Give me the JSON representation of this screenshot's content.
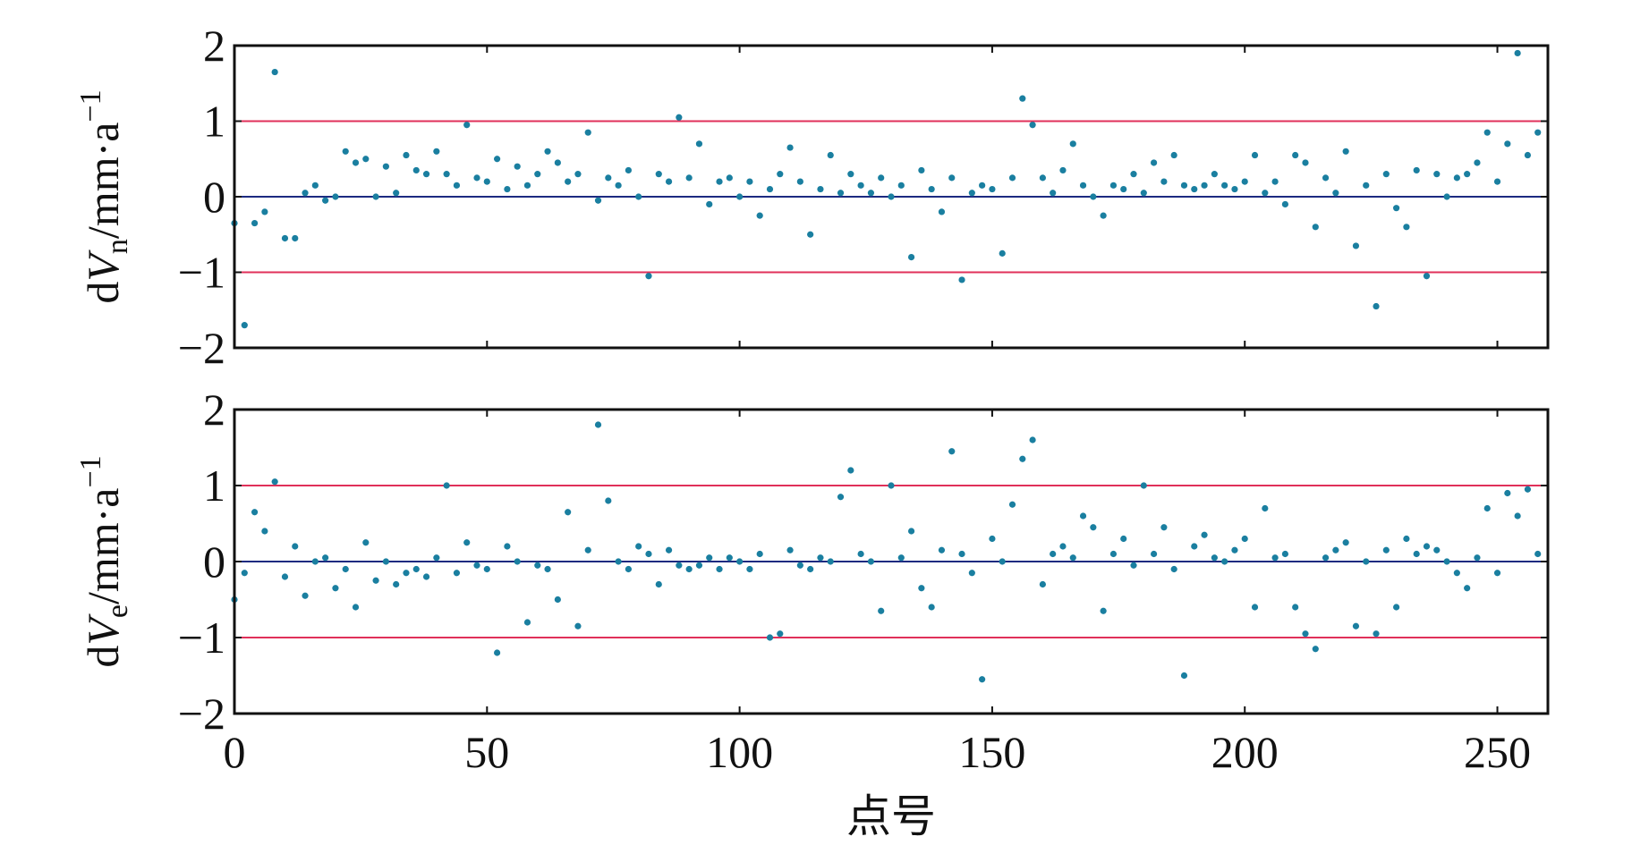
{
  "chart_data": [
    {
      "type": "scatter",
      "ylabel": [
        "d",
        "V",
        "n",
        "/mm·a",
        "−1"
      ],
      "color": "#1a7fa0",
      "x": [
        0,
        2,
        4,
        6,
        8,
        10,
        12,
        14,
        16,
        18,
        20,
        22,
        24,
        26,
        28,
        30,
        32,
        34,
        36,
        38,
        40,
        42,
        44,
        46,
        48,
        50,
        52,
        54,
        56,
        58,
        60,
        62,
        64,
        66,
        68,
        70,
        72,
        74,
        76,
        78,
        80,
        82,
        84,
        86,
        88,
        90,
        92,
        94,
        96,
        98,
        100,
        102,
        104,
        106,
        108,
        110,
        112,
        114,
        116,
        118,
        120,
        122,
        124,
        126,
        128,
        130,
        132,
        134,
        136,
        138,
        140,
        142,
        144,
        146,
        148,
        150,
        152,
        154,
        156,
        158,
        160,
        162,
        164,
        166,
        168,
        170,
        172,
        174,
        176,
        178,
        180,
        182,
        184,
        186,
        188,
        190,
        192,
        194,
        196,
        198,
        200,
        202,
        204,
        206,
        208,
        210,
        212,
        214,
        216,
        218,
        220,
        222,
        224,
        226,
        228,
        230,
        232,
        234,
        236,
        238,
        240,
        242,
        244,
        246,
        248,
        250,
        252,
        254,
        256,
        258
      ],
      "values": [
        -0.35,
        -1.7,
        -0.35,
        -0.2,
        1.65,
        -0.55,
        -0.55,
        0.05,
        0.15,
        -0.05,
        0.0,
        0.6,
        0.45,
        0.5,
        0.0,
        0.4,
        0.05,
        0.55,
        0.35,
        0.3,
        0.6,
        0.3,
        0.15,
        0.95,
        0.25,
        0.2,
        0.5,
        0.1,
        0.4,
        0.15,
        0.3,
        0.6,
        0.45,
        0.2,
        0.3,
        0.85,
        -0.05,
        0.25,
        0.15,
        0.35,
        0.0,
        -1.05,
        0.3,
        0.2,
        1.05,
        0.25,
        0.7,
        -0.1,
        0.2,
        0.25,
        0.0,
        0.2,
        -0.25,
        0.1,
        0.3,
        0.65,
        0.2,
        -0.5,
        0.1,
        0.55,
        0.05,
        0.3,
        0.15,
        0.05,
        0.25,
        0.0,
        0.15,
        -0.8,
        0.35,
        0.1,
        -0.2,
        0.25,
        -1.1,
        0.05,
        0.15,
        0.1,
        -0.75,
        0.25,
        1.3,
        0.95,
        0.25,
        0.05,
        0.35,
        0.7,
        0.15,
        0.0,
        -0.25,
        0.15,
        0.1,
        0.3,
        0.05,
        0.45,
        0.2,
        0.55,
        0.15,
        0.1,
        0.15,
        0.3,
        0.15,
        0.1,
        0.2,
        0.55,
        0.05,
        0.2,
        -0.1,
        0.55,
        0.45,
        -0.4,
        0.25,
        0.05,
        0.6,
        -0.65,
        0.15,
        -1.45,
        0.3,
        -0.15,
        -0.4,
        0.35,
        -1.05,
        0.3,
        0.0,
        0.25,
        0.3,
        0.45,
        0.85,
        0.2,
        0.7,
        1.9,
        0.55,
        0.85
      ],
      "hlines": [
        {
          "y": 1,
          "color": "#e0305a"
        },
        {
          "y": 0,
          "color": "#1c2a80"
        },
        {
          "y": -1,
          "color": "#e0305a"
        }
      ],
      "xlim": [
        0,
        260
      ],
      "xticks": [
        0,
        50,
        100,
        150,
        200,
        250
      ],
      "show_xtick_labels": false,
      "ylim": [
        -2,
        2
      ],
      "yticks": [
        {
          "value": -2,
          "label": "−2"
        },
        {
          "value": -1,
          "label": "−1"
        },
        0,
        1,
        2
      ]
    },
    {
      "type": "scatter",
      "ylabel": [
        "d",
        "V",
        "e",
        "/mm·a",
        "−1"
      ],
      "xlabel": "点号",
      "color": "#1a7fa0",
      "x": [
        0,
        2,
        4,
        6,
        8,
        10,
        12,
        14,
        16,
        18,
        20,
        22,
        24,
        26,
        28,
        30,
        32,
        34,
        36,
        38,
        40,
        42,
        44,
        46,
        48,
        50,
        52,
        54,
        56,
        58,
        60,
        62,
        64,
        66,
        68,
        70,
        72,
        74,
        76,
        78,
        80,
        82,
        84,
        86,
        88,
        90,
        92,
        94,
        96,
        98,
        100,
        102,
        104,
        106,
        108,
        110,
        112,
        114,
        116,
        118,
        120,
        122,
        124,
        126,
        128,
        130,
        132,
        134,
        136,
        138,
        140,
        142,
        144,
        146,
        148,
        150,
        152,
        154,
        156,
        158,
        160,
        162,
        164,
        166,
        168,
        170,
        172,
        174,
        176,
        178,
        180,
        182,
        184,
        186,
        188,
        190,
        192,
        194,
        196,
        198,
        200,
        202,
        204,
        206,
        208,
        210,
        212,
        214,
        216,
        218,
        220,
        222,
        224,
        226,
        228,
        230,
        232,
        234,
        236,
        238,
        240,
        242,
        244,
        246,
        248,
        250,
        252,
        254,
        256,
        258
      ],
      "values": [
        -0.5,
        -0.15,
        0.65,
        0.4,
        1.05,
        -0.2,
        0.2,
        -0.45,
        0.0,
        0.05,
        -0.35,
        -0.1,
        -0.6,
        0.25,
        -0.25,
        0.0,
        -0.3,
        -0.15,
        -0.1,
        -0.2,
        0.05,
        1.0,
        -0.15,
        0.25,
        -0.05,
        -0.1,
        -1.2,
        0.2,
        0.0,
        -0.8,
        -0.05,
        -0.1,
        -0.5,
        0.65,
        -0.85,
        0.15,
        1.8,
        0.8,
        0.0,
        -0.1,
        0.2,
        0.1,
        -0.3,
        0.15,
        -0.05,
        -0.1,
        -0.05,
        0.05,
        -0.1,
        0.05,
        0.0,
        -0.1,
        0.1,
        -1.0,
        -0.95,
        0.15,
        -0.05,
        -0.1,
        0.05,
        0.0,
        0.85,
        1.2,
        0.1,
        0.0,
        -0.65,
        1.0,
        0.05,
        0.4,
        -0.35,
        -0.6,
        0.15,
        1.45,
        0.1,
        -0.15,
        -1.55,
        0.3,
        0.0,
        0.75,
        1.35,
        1.6,
        -0.3,
        0.1,
        0.2,
        0.05,
        0.6,
        0.45,
        -0.65,
        0.1,
        0.3,
        -0.05,
        1.0,
        0.1,
        0.45,
        -0.1,
        -1.5,
        0.2,
        0.35,
        0.05,
        0.0,
        0.15,
        0.3,
        -0.6,
        0.7,
        0.05,
        0.1,
        -0.6,
        -0.95,
        -1.15,
        0.05,
        0.15,
        0.25,
        -0.85,
        0.0,
        -0.95,
        0.15,
        -0.6,
        0.3,
        0.1,
        0.2,
        0.15,
        0.0,
        -0.15,
        -0.35,
        0.05,
        0.7,
        -0.15,
        0.9,
        0.6,
        0.95,
        0.1
      ],
      "hlines": [
        {
          "y": 1,
          "color": "#e0305a"
        },
        {
          "y": 0,
          "color": "#1c2a80"
        },
        {
          "y": -1,
          "color": "#e0305a"
        }
      ],
      "xlim": [
        0,
        260
      ],
      "xticks": [
        0,
        50,
        100,
        150,
        200,
        250
      ],
      "show_xtick_labels": true,
      "ylim": [
        -2,
        2
      ],
      "yticks": [
        {
          "value": -2,
          "label": "−2"
        },
        {
          "value": -1,
          "label": "−1"
        },
        0,
        1,
        2
      ]
    }
  ]
}
